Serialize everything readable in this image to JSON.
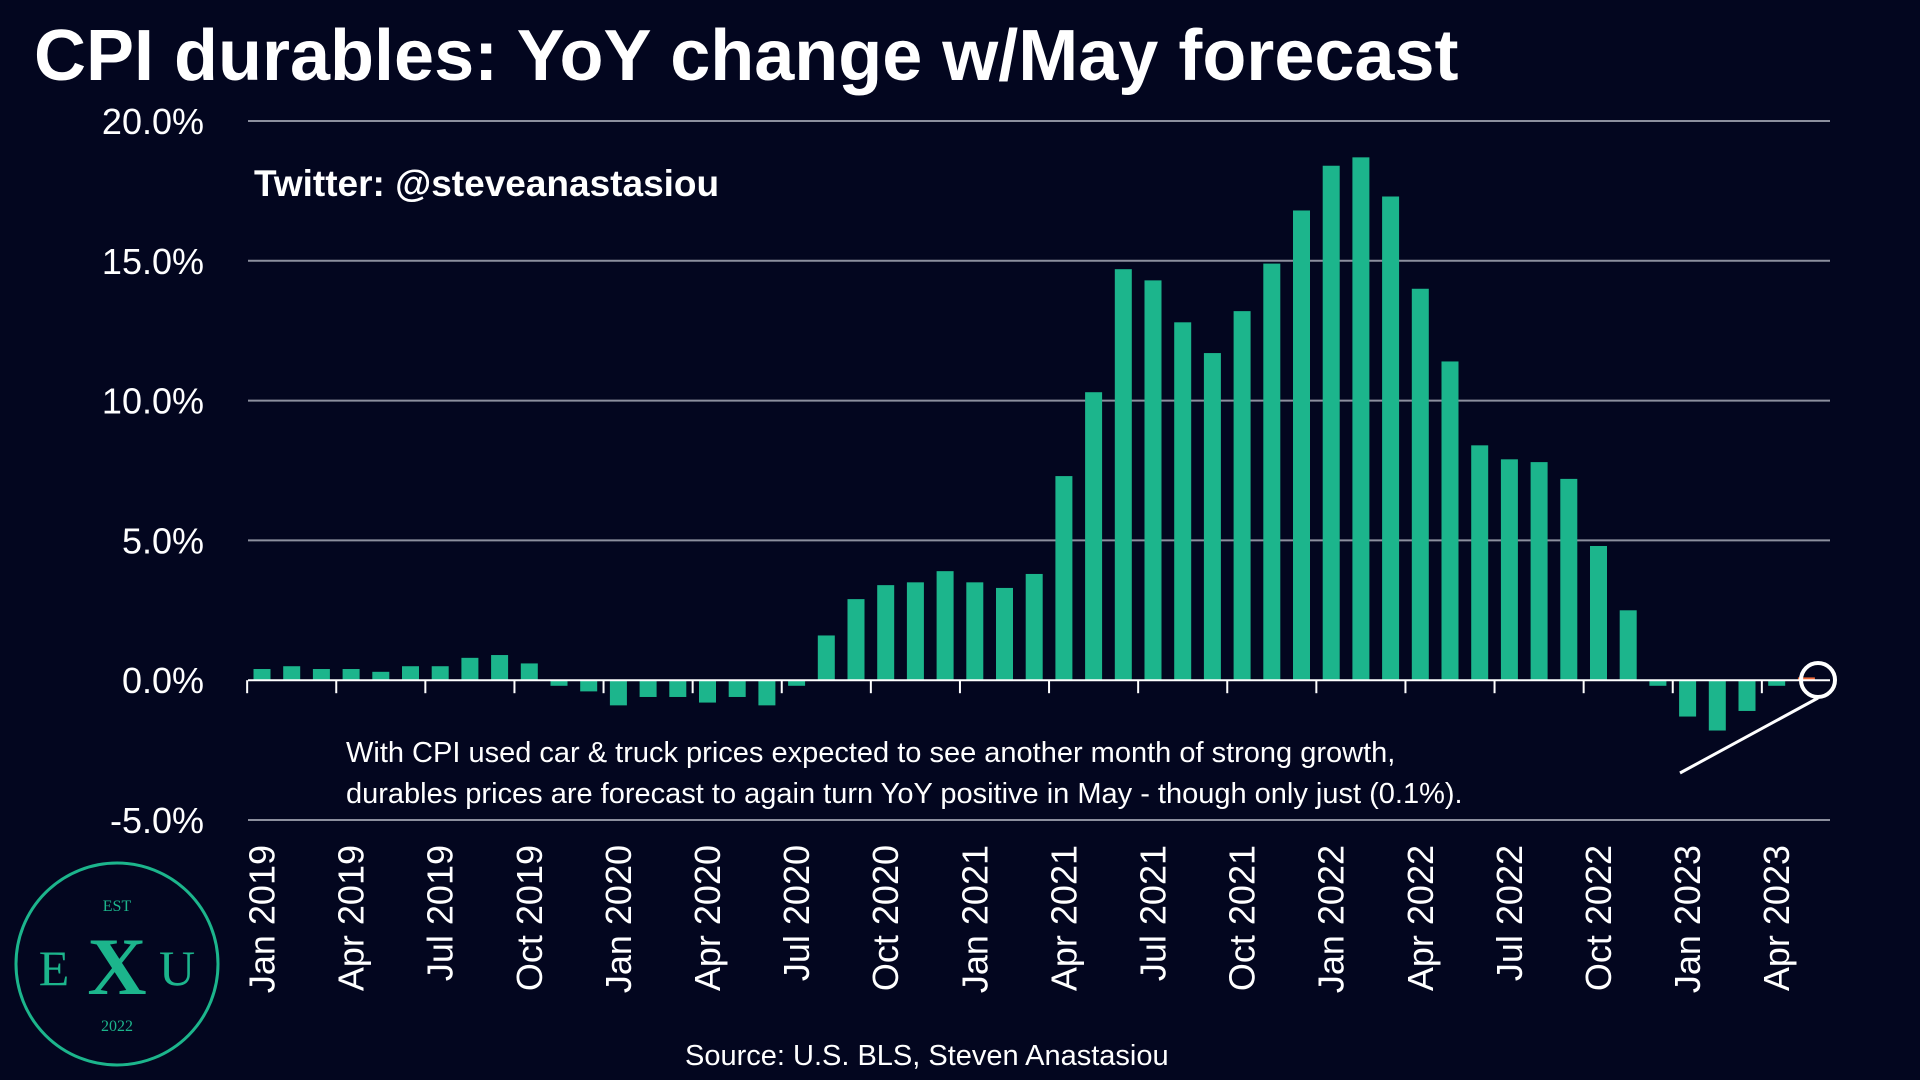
{
  "title": "CPI durables: YoY change w/May forecast",
  "watermark": "Twitter: @steveanastasiou",
  "source": "Source: U.S. BLS, Steven Anastasiou",
  "annotation": [
    "With CPI used car & truck prices expected to see another month of strong growth,",
    "durables prices are forecast to again turn YoY positive in May - though only just (0.1%)."
  ],
  "logo": {
    "top": "EST",
    "left": "E",
    "middle": "X",
    "right": "U",
    "bottom": "2022"
  },
  "colors": {
    "background": "#03061f",
    "actual_bar": "#1cb58c",
    "forecast_bar": "#f26b3a",
    "gridline": "#8c8f9e",
    "text": "#ffffff"
  },
  "chart_data": {
    "type": "bar",
    "title": "CPI durables: YoY change w/May forecast",
    "xlabel": "",
    "ylabel": "",
    "ylim": [
      -5,
      20
    ],
    "yticks": [
      "20.0%",
      "15.0%",
      "10.0%",
      "5.0%",
      "0.0%",
      "-5.0%"
    ],
    "ytick_values": [
      20,
      15,
      10,
      5,
      0,
      -5
    ],
    "grid": true,
    "x_tick_labels": [
      {
        "index": 0,
        "label": "Jan 2019"
      },
      {
        "index": 3,
        "label": "Apr 2019"
      },
      {
        "index": 6,
        "label": "Jul 2019"
      },
      {
        "index": 9,
        "label": "Oct 2019"
      },
      {
        "index": 12,
        "label": "Jan 2020"
      },
      {
        "index": 15,
        "label": "Apr 2020"
      },
      {
        "index": 18,
        "label": "Jul 2020"
      },
      {
        "index": 21,
        "label": "Oct 2020"
      },
      {
        "index": 24,
        "label": "Jan 2021"
      },
      {
        "index": 27,
        "label": "Apr 2021"
      },
      {
        "index": 30,
        "label": "Jul 2021"
      },
      {
        "index": 33,
        "label": "Oct 2021"
      },
      {
        "index": 36,
        "label": "Jan 2022"
      },
      {
        "index": 39,
        "label": "Apr 2022"
      },
      {
        "index": 42,
        "label": "Jul 2022"
      },
      {
        "index": 45,
        "label": "Oct 2022"
      },
      {
        "index": 48,
        "label": "Jan 2023"
      },
      {
        "index": 51,
        "label": "Apr 2023"
      }
    ],
    "categories": [
      "Jan 2019",
      "Feb 2019",
      "Mar 2019",
      "Apr 2019",
      "May 2019",
      "Jun 2019",
      "Jul 2019",
      "Aug 2019",
      "Sep 2019",
      "Oct 2019",
      "Nov 2019",
      "Dec 2019",
      "Jan 2020",
      "Feb 2020",
      "Mar 2020",
      "Apr 2020",
      "May 2020",
      "Jun 2020",
      "Jul 2020",
      "Aug 2020",
      "Sep 2020",
      "Oct 2020",
      "Nov 2020",
      "Dec 2020",
      "Jan 2021",
      "Feb 2021",
      "Mar 2021",
      "Apr 2021",
      "May 2021",
      "Jun 2021",
      "Jul 2021",
      "Aug 2021",
      "Sep 2021",
      "Oct 2021",
      "Nov 2021",
      "Dec 2021",
      "Jan 2022",
      "Feb 2022",
      "Mar 2022",
      "Apr 2022",
      "May 2022",
      "Jun 2022",
      "Jul 2022",
      "Aug 2022",
      "Sep 2022",
      "Oct 2022",
      "Nov 2022",
      "Dec 2022",
      "Jan 2023",
      "Feb 2023",
      "Mar 2023",
      "Apr 2023",
      "May 2023"
    ],
    "series": [
      {
        "values": [
          0.4,
          0.5,
          0.4,
          0.4,
          0.3,
          0.5,
          0.5,
          0.8,
          0.9,
          0.6,
          -0.2,
          -0.4,
          -0.9,
          -0.6,
          -0.6,
          -0.8,
          -0.6,
          -0.9,
          -0.2,
          1.6,
          2.9,
          3.4,
          3.5,
          3.9,
          3.5,
          3.3,
          3.8,
          7.3,
          10.3,
          14.7,
          14.3,
          12.8,
          11.7,
          13.2,
          14.9,
          16.8,
          18.4,
          18.7,
          17.3,
          14.0,
          11.4,
          8.4,
          7.9,
          7.8,
          7.2,
          4.8,
          2.5,
          -0.2,
          -1.3,
          -1.8,
          -1.1,
          -0.2,
          0.1
        ],
        "forecast_index": 52
      }
    ]
  }
}
